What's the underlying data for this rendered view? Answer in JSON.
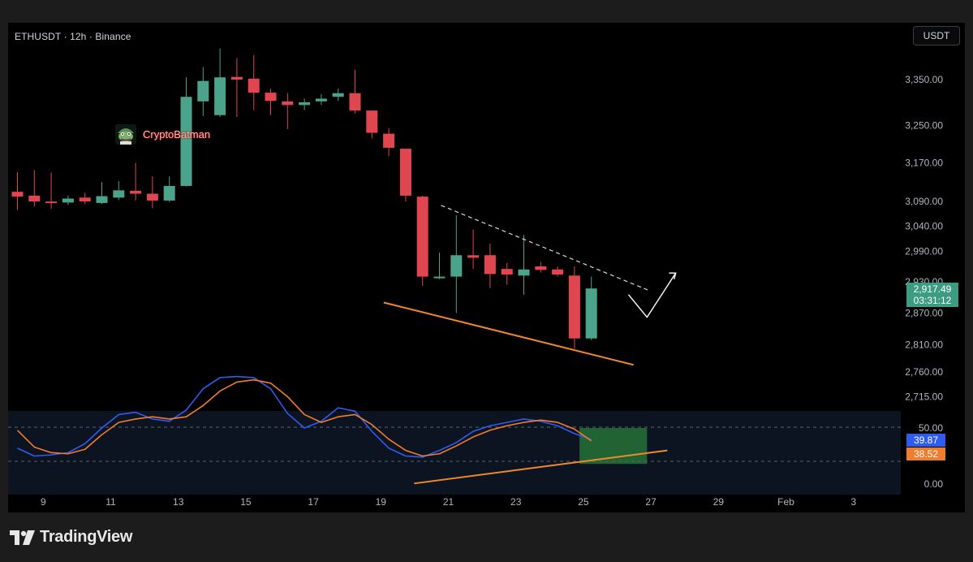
{
  "header": {
    "symbol_title": "ETHUSDT · 12h · Binance",
    "currency_label": "USDT"
  },
  "watermark": {
    "text": "CryptoBatman",
    "icon": "cartoon-frog-avatar-icon"
  },
  "price_tag": {
    "price": "2,917.49",
    "countdown": "03:31:12",
    "color": "#3c9c82"
  },
  "footer": {
    "brand": "TradingView",
    "icon": "tradingview-logo-icon"
  },
  "colors": {
    "up": "#4aa38a",
    "down": "#e0464f",
    "wedge_lower": "#f0882c",
    "wedge_upper": "#d9d9d9",
    "stoch_k": "#2f5cf0",
    "stoch_d": "#f07c2e",
    "oversold_box": "#2a7d3a"
  },
  "chart_data": [
    {
      "type": "candlestick",
      "title": "ETHUSDT · 12h · Binance",
      "y_axis": {
        "scale": "log",
        "ticks": [
          "3,350.00",
          "3,250.00",
          "3,170.00",
          "3,090.00",
          "3,040.00",
          "2,990.00",
          "2,930.00",
          "2,870.00",
          "2,810.00",
          "2,760.00",
          "2,715.00"
        ],
        "tick_values": [
          3350,
          3250,
          3170,
          3090,
          3040,
          2990,
          2930,
          2870,
          2810,
          2760,
          2715
        ]
      },
      "x_axis": {
        "ticks": [
          "9",
          "11",
          "13",
          "15",
          "17",
          "19",
          "21",
          "23",
          "25",
          "27",
          "29",
          "Feb",
          "3"
        ]
      },
      "candles": [
        {
          "o": 3110,
          "h": 3150,
          "l": 3073,
          "c": 3100
        },
        {
          "o": 3102,
          "h": 3155,
          "l": 3080,
          "c": 3090
        },
        {
          "o": 3090,
          "h": 3150,
          "l": 3075,
          "c": 3088
        },
        {
          "o": 3088,
          "h": 3102,
          "l": 3083,
          "c": 3096
        },
        {
          "o": 3098,
          "h": 3108,
          "l": 3085,
          "c": 3090
        },
        {
          "o": 3087,
          "h": 3130,
          "l": 3085,
          "c": 3101
        },
        {
          "o": 3098,
          "h": 3132,
          "l": 3093,
          "c": 3113
        },
        {
          "o": 3112,
          "h": 3170,
          "l": 3092,
          "c": 3106
        },
        {
          "o": 3106,
          "h": 3142,
          "l": 3076,
          "c": 3092
        },
        {
          "o": 3092,
          "h": 3142,
          "l": 3089,
          "c": 3122
        },
        {
          "o": 3122,
          "h": 3355,
          "l": 3121,
          "c": 3312
        },
        {
          "o": 3302,
          "h": 3378,
          "l": 3270,
          "c": 3347
        },
        {
          "o": 3272,
          "h": 3420,
          "l": 3268,
          "c": 3355
        },
        {
          "o": 3356,
          "h": 3398,
          "l": 3268,
          "c": 3350
        },
        {
          "o": 3352,
          "h": 3405,
          "l": 3283,
          "c": 3321
        },
        {
          "o": 3321,
          "h": 3330,
          "l": 3272,
          "c": 3303
        },
        {
          "o": 3302,
          "h": 3320,
          "l": 3242,
          "c": 3294
        },
        {
          "o": 3294,
          "h": 3308,
          "l": 3283,
          "c": 3300
        },
        {
          "o": 3302,
          "h": 3318,
          "l": 3294,
          "c": 3308
        },
        {
          "o": 3312,
          "h": 3330,
          "l": 3303,
          "c": 3320
        },
        {
          "o": 3320,
          "h": 3372,
          "l": 3276,
          "c": 3282
        },
        {
          "o": 3282,
          "h": 3282,
          "l": 3222,
          "c": 3234
        },
        {
          "o": 3232,
          "h": 3244,
          "l": 3184,
          "c": 3202
        },
        {
          "o": 3200,
          "h": 3200,
          "l": 3090,
          "c": 3102
        },
        {
          "o": 3100,
          "h": 3102,
          "l": 2922,
          "c": 2940
        },
        {
          "o": 2938,
          "h": 2987,
          "l": 2935,
          "c": 2940
        },
        {
          "o": 2940,
          "h": 3062,
          "l": 2870,
          "c": 2982
        },
        {
          "o": 2982,
          "h": 3033,
          "l": 2955,
          "c": 2977
        },
        {
          "o": 2982,
          "h": 3005,
          "l": 2918,
          "c": 2945
        },
        {
          "o": 2955,
          "h": 2967,
          "l": 2924,
          "c": 2944
        },
        {
          "o": 2942,
          "h": 3022,
          "l": 2905,
          "c": 2954
        },
        {
          "o": 2960,
          "h": 2969,
          "l": 2948,
          "c": 2953
        },
        {
          "o": 2954,
          "h": 2960,
          "l": 2940,
          "c": 2944
        },
        {
          "o": 2942,
          "h": 2960,
          "l": 2803,
          "c": 2822
        },
        {
          "o": 2822,
          "h": 2940,
          "l": 2819,
          "c": 2917
        }
      ],
      "annotations": [
        {
          "kind": "lower-wedge-line",
          "color": "#f0882c"
        },
        {
          "kind": "upper-wedge-dashed-line",
          "color": "#d9d9d9"
        },
        {
          "kind": "projection-arrow",
          "color": "#ffffff"
        }
      ]
    },
    {
      "type": "line",
      "name": "stochastic",
      "y_axis": {
        "ticks": [
          "50.00",
          "0.00"
        ],
        "tick_values": [
          50,
          0
        ]
      },
      "last_values": {
        "k": "39.87",
        "d": "38.52"
      },
      "series": [
        {
          "name": "%K",
          "color": "#2f5cf0",
          "values": [
            32,
            25,
            26,
            28,
            36,
            50,
            62,
            64,
            58,
            56,
            66,
            85,
            95,
            96,
            95,
            85,
            63,
            50,
            56,
            68,
            65,
            47,
            32,
            25,
            24,
            30,
            37,
            47,
            52,
            55,
            58,
            56,
            52,
            45,
            39.87
          ]
        },
        {
          "name": "%D",
          "color": "#f07c2e",
          "values": [
            48,
            33,
            28,
            27,
            31,
            44,
            55,
            58,
            60,
            58,
            60,
            70,
            83,
            91,
            93,
            90,
            78,
            62,
            55,
            60,
            62,
            53,
            40,
            30,
            25,
            27,
            34,
            42,
            48,
            52,
            55,
            57,
            55,
            49,
            38.52
          ]
        }
      ]
    }
  ]
}
